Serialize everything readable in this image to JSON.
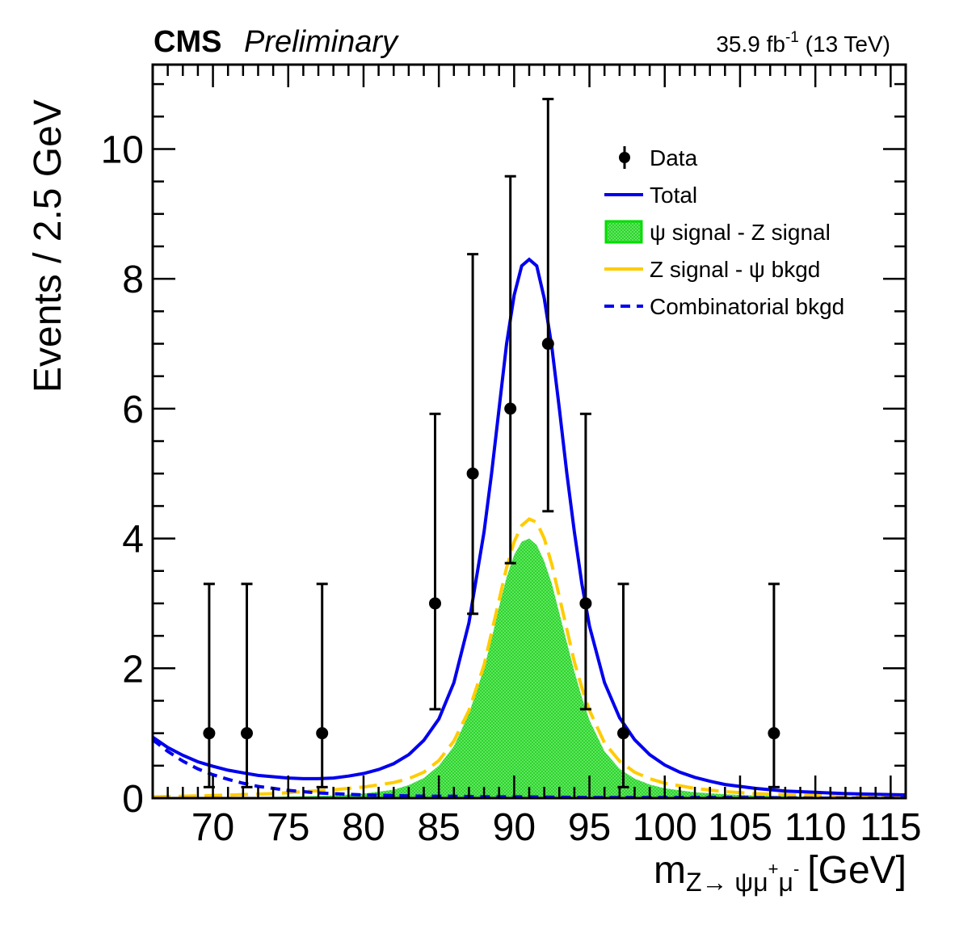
{
  "header": {
    "experiment": "CMS",
    "status": "Preliminary",
    "lumi_value": "35.9 fb",
    "lumi_exp": "-1",
    "energy": "(13 TeV)"
  },
  "colors": {
    "total": "#0000ee",
    "signal_fill": "#46e046",
    "signal_edge": "#00dd00",
    "zsignal": "#ffcc00",
    "combinatorial": "#0000ee",
    "data": "#000000"
  },
  "chart_data": {
    "type": "line",
    "title": "",
    "xlabel_main": "m",
    "xlabel_sub": "Z→ ψμ",
    "xlabel_sup1": "+",
    "xlabel_mid": "μ",
    "xlabel_sup2": "-",
    "xlabel_unit": "[GeV]",
    "ylabel": "Events / 2.5 GeV",
    "xlim": [
      66,
      116
    ],
    "ylim": [
      0,
      11.3
    ],
    "x_ticks": [
      70,
      75,
      80,
      85,
      90,
      95,
      100,
      105,
      110,
      115
    ],
    "x_tick_labels": [
      "70",
      "75",
      "80",
      "85",
      "90",
      "95",
      "100",
      "105",
      "110",
      "115"
    ],
    "y_ticks": [
      0,
      2,
      4,
      6,
      8,
      10
    ],
    "y_tick_labels": [
      "0",
      "2",
      "4",
      "6",
      "8",
      "10"
    ],
    "legend": [
      {
        "key": "data",
        "label": "Data"
      },
      {
        "key": "total",
        "label": "Total"
      },
      {
        "key": "signal",
        "label": "ψ signal - Z signal"
      },
      {
        "key": "zsignal",
        "label": "Z signal - ψ bkgd"
      },
      {
        "key": "combinatorial",
        "label": "Combinatorial bkgd"
      }
    ],
    "data_points": [
      {
        "x": 69.75,
        "y": 1,
        "err_low": 0.83,
        "err_high": 2.3
      },
      {
        "x": 72.25,
        "y": 1,
        "err_low": 0.83,
        "err_high": 2.3
      },
      {
        "x": 77.25,
        "y": 1,
        "err_low": 0.83,
        "err_high": 2.3
      },
      {
        "x": 84.75,
        "y": 3,
        "err_low": 1.63,
        "err_high": 2.92
      },
      {
        "x": 87.25,
        "y": 5,
        "err_low": 2.16,
        "err_high": 3.38
      },
      {
        "x": 89.75,
        "y": 6,
        "err_low": 2.38,
        "err_high": 3.58
      },
      {
        "x": 92.25,
        "y": 7,
        "err_low": 2.58,
        "err_high": 3.77
      },
      {
        "x": 94.75,
        "y": 3,
        "err_low": 1.63,
        "err_high": 2.92
      },
      {
        "x": 97.25,
        "y": 1,
        "err_low": 0.83,
        "err_high": 2.3
      },
      {
        "x": 107.25,
        "y": 1,
        "err_low": 0.83,
        "err_high": 2.3
      }
    ],
    "series": [
      {
        "name": "Total",
        "x": [
          66,
          67,
          68,
          69,
          70,
          71,
          72,
          73,
          74,
          75,
          76,
          77,
          78,
          79,
          80,
          81,
          82,
          83,
          84,
          85,
          86,
          87,
          88,
          88.5,
          89,
          89.5,
          90,
          90.5,
          91,
          91.5,
          92,
          92.5,
          93,
          93.5,
          94,
          94.5,
          95,
          96,
          97,
          98,
          99,
          100,
          101,
          102,
          103,
          104,
          105,
          106,
          108,
          110,
          112,
          114,
          116
        ],
        "y": [
          0.94,
          0.78,
          0.66,
          0.56,
          0.49,
          0.43,
          0.39,
          0.35,
          0.33,
          0.31,
          0.3,
          0.3,
          0.31,
          0.34,
          0.38,
          0.44,
          0.53,
          0.67,
          0.89,
          1.22,
          1.78,
          2.7,
          4.1,
          5.0,
          6.0,
          7.0,
          7.75,
          8.2,
          8.3,
          8.2,
          7.7,
          6.95,
          6.0,
          5.0,
          4.1,
          3.3,
          2.65,
          1.78,
          1.24,
          0.9,
          0.67,
          0.51,
          0.4,
          0.32,
          0.26,
          0.21,
          0.18,
          0.15,
          0.11,
          0.09,
          0.07,
          0.06,
          0.05
        ]
      },
      {
        "name": "ψ signal - Z signal",
        "x": [
          66,
          70,
          74,
          78,
          80,
          82,
          83,
          84,
          85,
          86,
          87,
          88,
          88.5,
          89,
          89.5,
          90,
          90.5,
          91,
          91.5,
          92,
          92.5,
          93,
          93.5,
          94,
          94.5,
          95,
          96,
          97,
          98,
          99,
          100,
          102,
          104,
          106,
          110,
          116
        ],
        "y": [
          0.0,
          0.01,
          0.02,
          0.04,
          0.07,
          0.13,
          0.2,
          0.31,
          0.5,
          0.8,
          1.3,
          2.0,
          2.45,
          2.95,
          3.4,
          3.75,
          3.95,
          4.0,
          3.9,
          3.65,
          3.3,
          2.85,
          2.4,
          1.95,
          1.55,
          1.2,
          0.72,
          0.45,
          0.3,
          0.21,
          0.15,
          0.09,
          0.06,
          0.04,
          0.02,
          0.01
        ]
      },
      {
        "name": "Z signal - ψ bkgd",
        "x": [
          66,
          70,
          74,
          76,
          78,
          80,
          82,
          83,
          84,
          85,
          86,
          87,
          88,
          88.5,
          89,
          89.5,
          90,
          90.5,
          91,
          91.5,
          92,
          92.5,
          93,
          93.5,
          94,
          94.5,
          95,
          96,
          97,
          98,
          99,
          100,
          102,
          104,
          106,
          110,
          116
        ],
        "y": [
          0.02,
          0.04,
          0.07,
          0.1,
          0.13,
          0.17,
          0.24,
          0.3,
          0.4,
          0.58,
          0.88,
          1.35,
          2.05,
          2.55,
          3.05,
          3.55,
          3.95,
          4.2,
          4.3,
          4.25,
          4.0,
          3.6,
          3.1,
          2.6,
          2.1,
          1.7,
          1.35,
          0.85,
          0.57,
          0.4,
          0.3,
          0.23,
          0.15,
          0.1,
          0.07,
          0.04,
          0.02
        ]
      },
      {
        "name": "Combinatorial bkgd",
        "x": [
          66,
          67,
          68,
          69,
          70,
          71,
          72,
          73,
          74,
          75,
          76,
          77,
          78,
          80,
          82,
          84,
          86,
          88,
          90,
          95,
          100,
          105,
          110,
          116
        ],
        "y": [
          0.9,
          0.72,
          0.57,
          0.45,
          0.36,
          0.29,
          0.23,
          0.18,
          0.15,
          0.12,
          0.1,
          0.08,
          0.07,
          0.05,
          0.04,
          0.03,
          0.03,
          0.02,
          0.02,
          0.01,
          0.01,
          0.01,
          0.0,
          0.0
        ]
      }
    ]
  }
}
